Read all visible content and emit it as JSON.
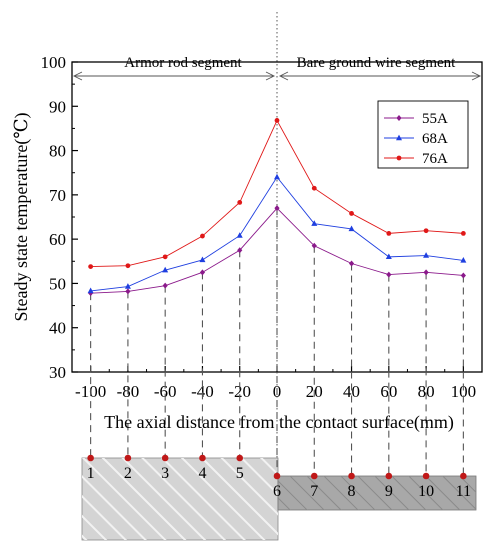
{
  "chart_data": {
    "type": "line",
    "title": "",
    "xlabel": "The axial distance from the contact surface(mm)",
    "ylabel": "Steady state temperature(℃)",
    "x": [
      -100,
      -80,
      -60,
      -40,
      -20,
      0,
      20,
      40,
      60,
      80,
      100
    ],
    "xlim": [
      -110,
      110
    ],
    "ylim": [
      30,
      100
    ],
    "x_ticks": [
      -100,
      -80,
      -60,
      -40,
      -20,
      0,
      20,
      40,
      60,
      80,
      100
    ],
    "y_ticks": [
      30,
      40,
      50,
      60,
      70,
      80,
      90,
      100
    ],
    "grid": false,
    "legend_position": "top-right",
    "series": [
      {
        "name": "55A",
        "color": "#8b1a8b",
        "marker": "diamond",
        "values": [
          47.8,
          48.2,
          49.5,
          52.5,
          57.5,
          67.0,
          58.5,
          54.5,
          52.0,
          52.5,
          51.8
        ]
      },
      {
        "name": "68A",
        "color": "#1f3fe0",
        "marker": "triangle",
        "values": [
          48.3,
          49.3,
          53.0,
          55.3,
          60.8,
          74.0,
          63.5,
          62.3,
          56.0,
          56.3,
          55.2
        ]
      },
      {
        "name": "76A",
        "color": "#e01818",
        "marker": "circle",
        "values": [
          53.8,
          54.0,
          56.0,
          60.7,
          68.3,
          86.8,
          71.5,
          65.8,
          61.3,
          61.9,
          61.3
        ]
      }
    ],
    "annotations": [
      {
        "text": "Armor rod segment",
        "x_from": -110,
        "x_to": 0
      },
      {
        "text": "Bare ground wire segment",
        "x_from": 0,
        "x_to": 110
      }
    ],
    "points": {
      "labels": [
        "1",
        "2",
        "3",
        "4",
        "5",
        "6",
        "7",
        "8",
        "9",
        "10",
        "11"
      ]
    }
  },
  "colors": {
    "point_dot": "#c01818",
    "armor_fill": "#d4d4d4",
    "armor_hatch": "#f2f2f2",
    "bare_fill": "#a8a8a8",
    "bare_hatch": "#8a8a8a"
  }
}
